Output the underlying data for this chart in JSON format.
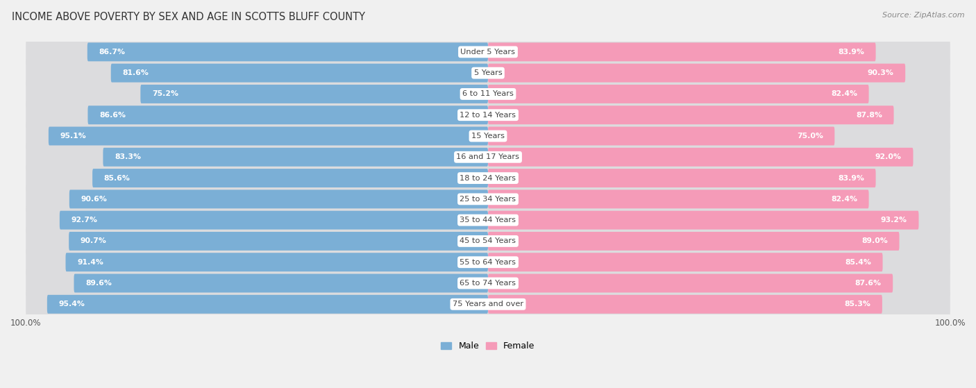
{
  "title": "INCOME ABOVE POVERTY BY SEX AND AGE IN SCOTTS BLUFF COUNTY",
  "source": "Source: ZipAtlas.com",
  "categories": [
    "Under 5 Years",
    "5 Years",
    "6 to 11 Years",
    "12 to 14 Years",
    "15 Years",
    "16 and 17 Years",
    "18 to 24 Years",
    "25 to 34 Years",
    "35 to 44 Years",
    "45 to 54 Years",
    "55 to 64 Years",
    "65 to 74 Years",
    "75 Years and over"
  ],
  "male_values": [
    86.7,
    81.6,
    75.2,
    86.6,
    95.1,
    83.3,
    85.6,
    90.6,
    92.7,
    90.7,
    91.4,
    89.6,
    95.4
  ],
  "female_values": [
    83.9,
    90.3,
    82.4,
    87.8,
    75.0,
    92.0,
    83.9,
    82.4,
    93.2,
    89.0,
    85.4,
    87.6,
    85.3
  ],
  "male_color": "#7bafd6",
  "female_color": "#f59bb8",
  "male_label": "Male",
  "female_label": "Female",
  "max_value": 100.0,
  "bg_color": "#f0f0f0",
  "row_bg_color": "#e0e0e5",
  "title_fontsize": 10.5,
  "label_fontsize": 8.2,
  "value_fontsize": 7.8,
  "source_fontsize": 8.0
}
